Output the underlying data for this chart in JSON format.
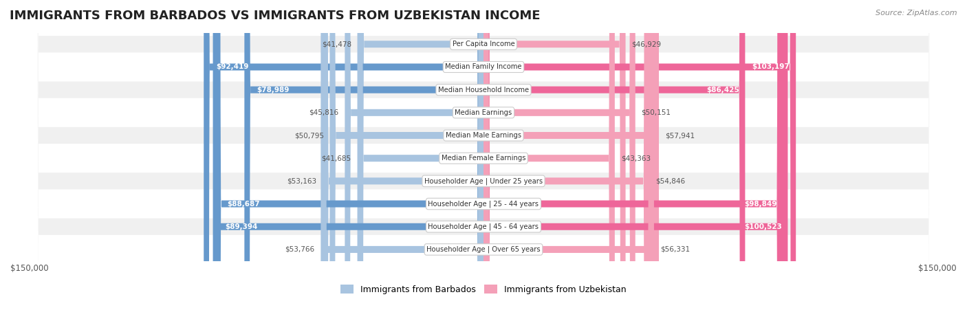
{
  "title": "IMMIGRANTS FROM BARBADOS VS IMMIGRANTS FROM UZBEKISTAN INCOME",
  "source": "Source: ZipAtlas.com",
  "categories": [
    "Per Capita Income",
    "Median Family Income",
    "Median Household Income",
    "Median Earnings",
    "Median Male Earnings",
    "Median Female Earnings",
    "Householder Age | Under 25 years",
    "Householder Age | 25 - 44 years",
    "Householder Age | 45 - 64 years",
    "Householder Age | Over 65 years"
  ],
  "barbados_values": [
    41478,
    92419,
    78989,
    45816,
    50795,
    41685,
    53163,
    88687,
    89394,
    53766
  ],
  "uzbekistan_values": [
    46929,
    103197,
    86425,
    50151,
    57941,
    43363,
    54846,
    98849,
    100523,
    56331
  ],
  "barbados_color_light": "#a8c4e0",
  "barbados_color_dark": "#6699cc",
  "uzbekistan_color_light": "#f4a0b8",
  "uzbekistan_color_dark": "#ee6699",
  "max_value": 150000,
  "row_bg_color": "#f0f0f0",
  "row_alt_bg_color": "#ffffff",
  "label_bg_color": "#ffffff",
  "legend_barbados": "Immigrants from Barbados",
  "legend_uzbekistan": "Immigrants from Uzbekistan",
  "barbados_label_color_large": "#ffffff",
  "barbados_label_color_small": "#555555",
  "uzbekistan_label_color_large": "#ffffff",
  "uzbekistan_label_color_small": "#555555",
  "large_threshold": 70000
}
